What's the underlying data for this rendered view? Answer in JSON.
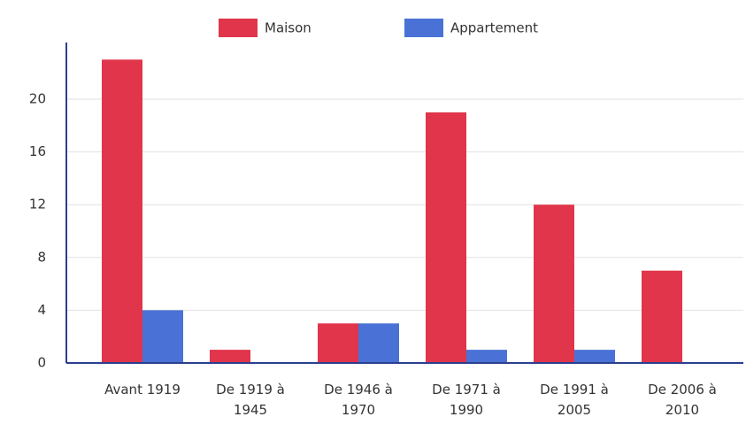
{
  "chart_data": {
    "type": "bar",
    "categories": [
      "Avant 1919",
      "De 1919 à 1945",
      "De 1946 à 1970",
      "De 1971 à 1990",
      "De 1991 à 2005",
      "De 2006 à 2010"
    ],
    "series": [
      {
        "name": "Maison",
        "color": "#e0354b",
        "values": [
          23,
          1,
          3,
          19,
          12,
          7
        ]
      },
      {
        "name": "Appartement",
        "color": "#4a72d6",
        "values": [
          4,
          0,
          3,
          1,
          1,
          0
        ]
      }
    ],
    "ylim": [
      0,
      24
    ],
    "yticks": [
      0,
      4,
      8,
      12,
      16,
      20
    ],
    "grid": true,
    "legend": "top"
  }
}
